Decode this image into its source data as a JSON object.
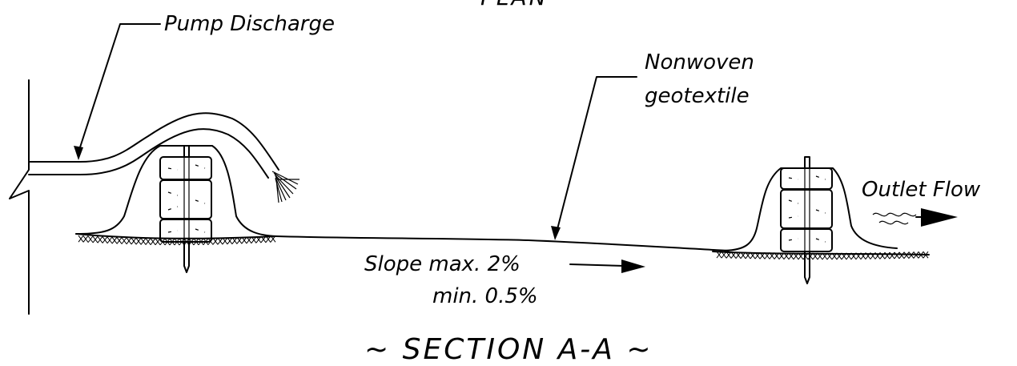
{
  "labels": {
    "top_cut_text": "PLAN",
    "pump_discharge": "Pump Discharge",
    "geotextile_line1": "Nonwoven",
    "geotextile_line2": "geotextile",
    "outlet_flow": "Outlet Flow",
    "slope_line1": "Slope max. 2%",
    "slope_line2": "min. 0.5%",
    "section_title": "~ SECTION A-A ~"
  },
  "icons": {
    "pump_hose": "hose-icon",
    "straw_bale": "straw-bale-icon",
    "stake": "stake-icon",
    "flow_arrow": "arrow-right-icon",
    "wavy_flow": "wavy-water-icon"
  },
  "colors": {
    "line": "#000000",
    "background": "#ffffff"
  }
}
